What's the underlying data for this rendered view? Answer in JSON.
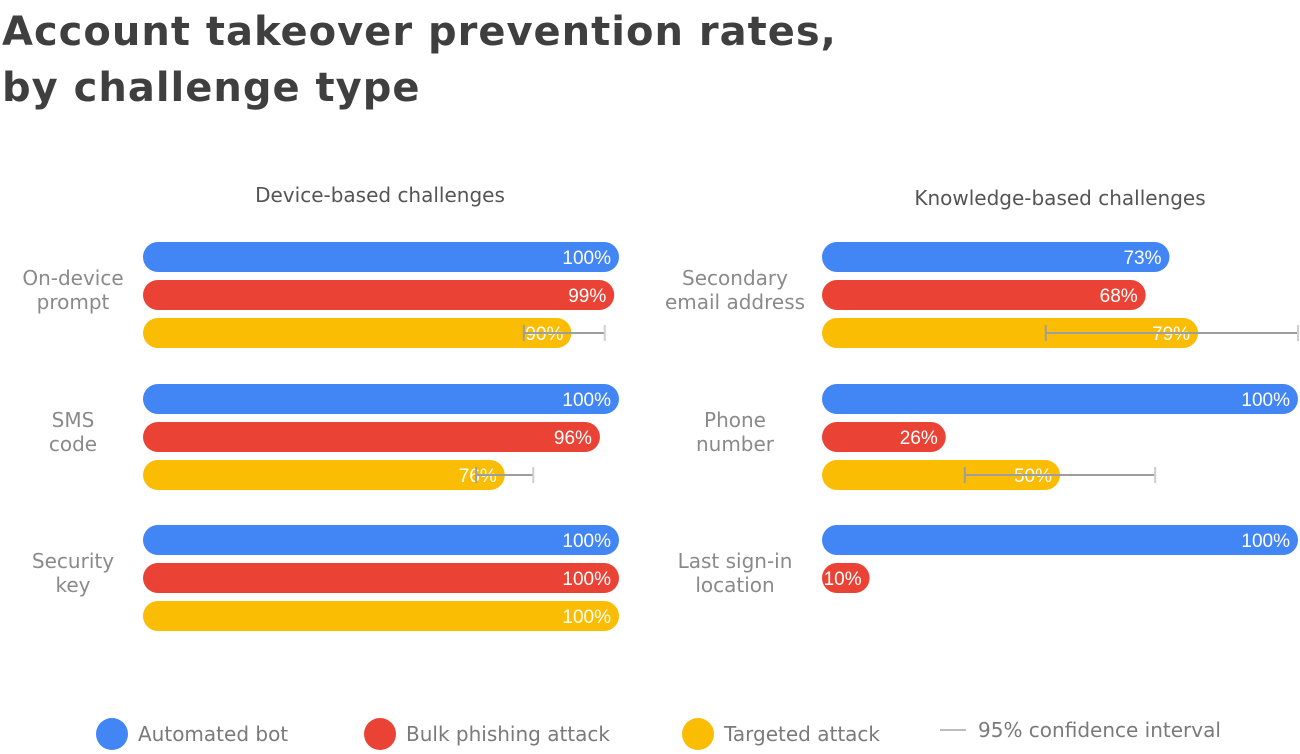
{
  "title_line1": "Account takeover prevention rates,",
  "title_line2": "by challenge type",
  "colors": {
    "bot": "#4285f4",
    "phishing": "#ea4335",
    "targeted": "#fbbc04",
    "ci": "#9e9e9e"
  },
  "legend": {
    "bot": "Automated bot",
    "phishing": "Bulk phishing attack",
    "targeted": "Targeted attack",
    "ci": "95% confidence interval"
  },
  "chart_data": [
    {
      "type": "bar",
      "orientation": "horizontal",
      "title": "Device-based challenges",
      "xlim": [
        0,
        100
      ],
      "series_names": [
        "Automated bot",
        "Bulk phishing attack",
        "Targeted attack"
      ],
      "groups": [
        {
          "label": [
            "On-device",
            "prompt"
          ],
          "bars": [
            {
              "series": "bot",
              "value": 100,
              "label": "100%"
            },
            {
              "series": "phishing",
              "value": 99,
              "label": "99%"
            },
            {
              "series": "targeted",
              "value": 90,
              "label": "90%",
              "ci": [
                80,
                97
              ]
            }
          ]
        },
        {
          "label": [
            "SMS",
            "code"
          ],
          "bars": [
            {
              "series": "bot",
              "value": 100,
              "label": "100%"
            },
            {
              "series": "phishing",
              "value": 96,
              "label": "96%"
            },
            {
              "series": "targeted",
              "value": 76,
              "label": "76%",
              "ci": [
                70,
                82
              ]
            }
          ]
        },
        {
          "label": [
            "Security",
            "key"
          ],
          "bars": [
            {
              "series": "bot",
              "value": 100,
              "label": "100%"
            },
            {
              "series": "phishing",
              "value": 100,
              "label": "100%"
            },
            {
              "series": "targeted",
              "value": 100,
              "label": "100%"
            }
          ]
        }
      ]
    },
    {
      "type": "bar",
      "orientation": "horizontal",
      "title": "Knowledge-based challenges",
      "xlim": [
        0,
        100
      ],
      "series_names": [
        "Automated bot",
        "Bulk phishing attack",
        "Targeted attack"
      ],
      "groups": [
        {
          "label": [
            "Secondary",
            "email address"
          ],
          "bars": [
            {
              "series": "bot",
              "value": 73,
              "label": "73%"
            },
            {
              "series": "phishing",
              "value": 68,
              "label": "68%"
            },
            {
              "series": "targeted",
              "value": 79,
              "label": "79%",
              "ci": [
                47,
                100
              ]
            }
          ]
        },
        {
          "label": [
            "Phone",
            "number"
          ],
          "bars": [
            {
              "series": "bot",
              "value": 100,
              "label": "100%"
            },
            {
              "series": "phishing",
              "value": 26,
              "label": "26%"
            },
            {
              "series": "targeted",
              "value": 50,
              "label": "50%",
              "ci": [
                30,
                70
              ]
            }
          ]
        },
        {
          "label": [
            "Last sign-in",
            "location"
          ],
          "bars": [
            {
              "series": "bot",
              "value": 100,
              "label": "100%"
            },
            {
              "series": "phishing",
              "value": 10,
              "label": "10%"
            }
          ]
        }
      ]
    }
  ]
}
